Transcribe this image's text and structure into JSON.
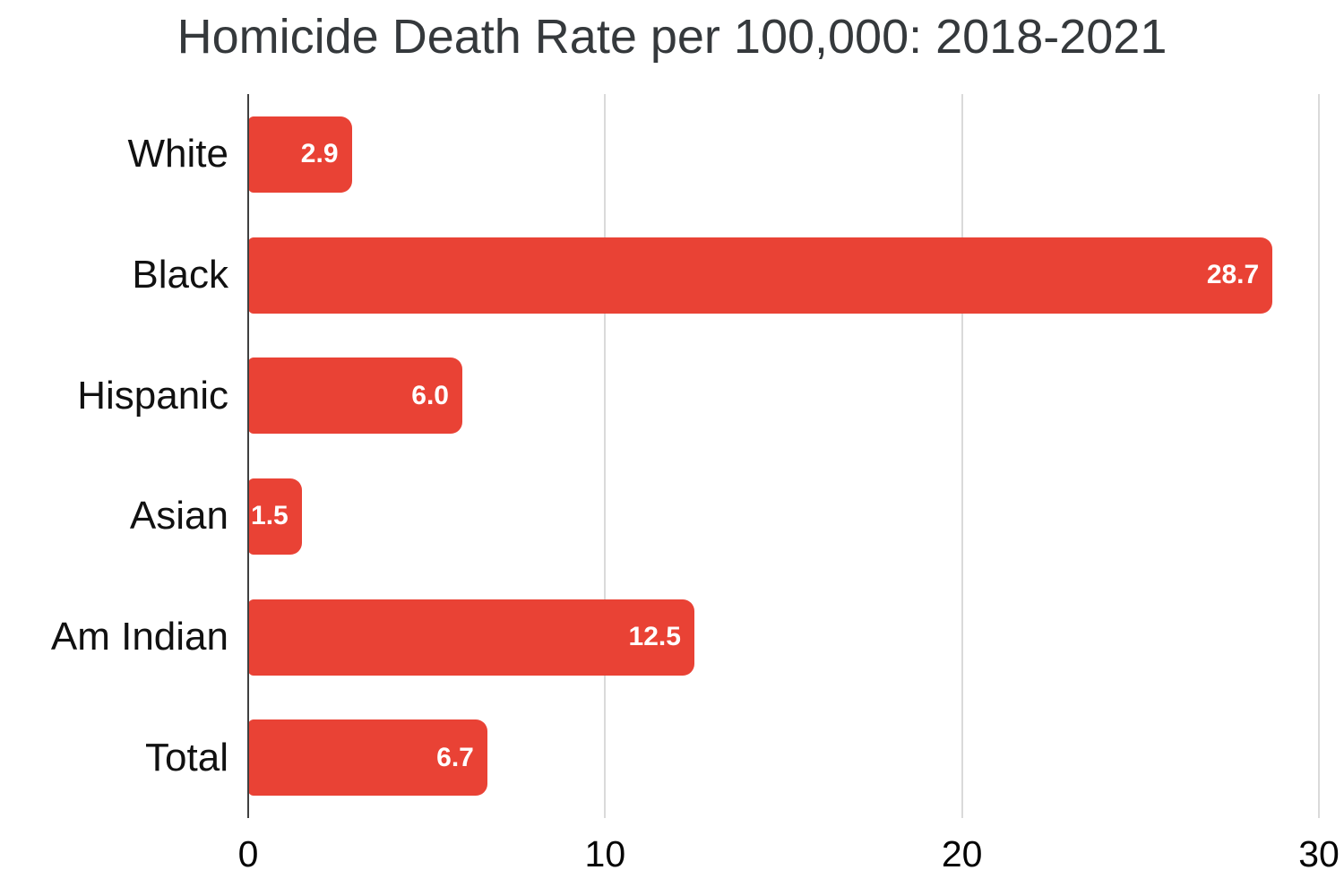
{
  "title": "Homicide Death Rate per 100,000: 2018-2021",
  "chart_data": {
    "type": "bar",
    "orientation": "horizontal",
    "title": "Homicide Death Rate per 100,000: 2018-2021",
    "categories": [
      "White",
      "Black",
      "Hispanic",
      "Asian",
      "Am Indian",
      "Total"
    ],
    "values": [
      2.9,
      28.7,
      6.0,
      1.5,
      12.5,
      6.7
    ],
    "value_labels": [
      "2.9",
      "28.7",
      "6.0",
      "1.5",
      "12.5",
      "6.7"
    ],
    "xlabel": "",
    "ylabel": "",
    "xlim": [
      0,
      30
    ],
    "x_ticks": [
      0,
      10,
      20,
      30
    ],
    "x_tick_labels": [
      "0",
      "10",
      "20",
      "30"
    ],
    "grid": true,
    "legend": false,
    "colors": {
      "bar": "#e94235",
      "value_label": "#ffffff",
      "gridline": "#dadada",
      "axis_line": "#404040",
      "title": "#35393c",
      "tick_label": "#050505",
      "category_label": "#111111",
      "background": "#ffffff"
    }
  }
}
